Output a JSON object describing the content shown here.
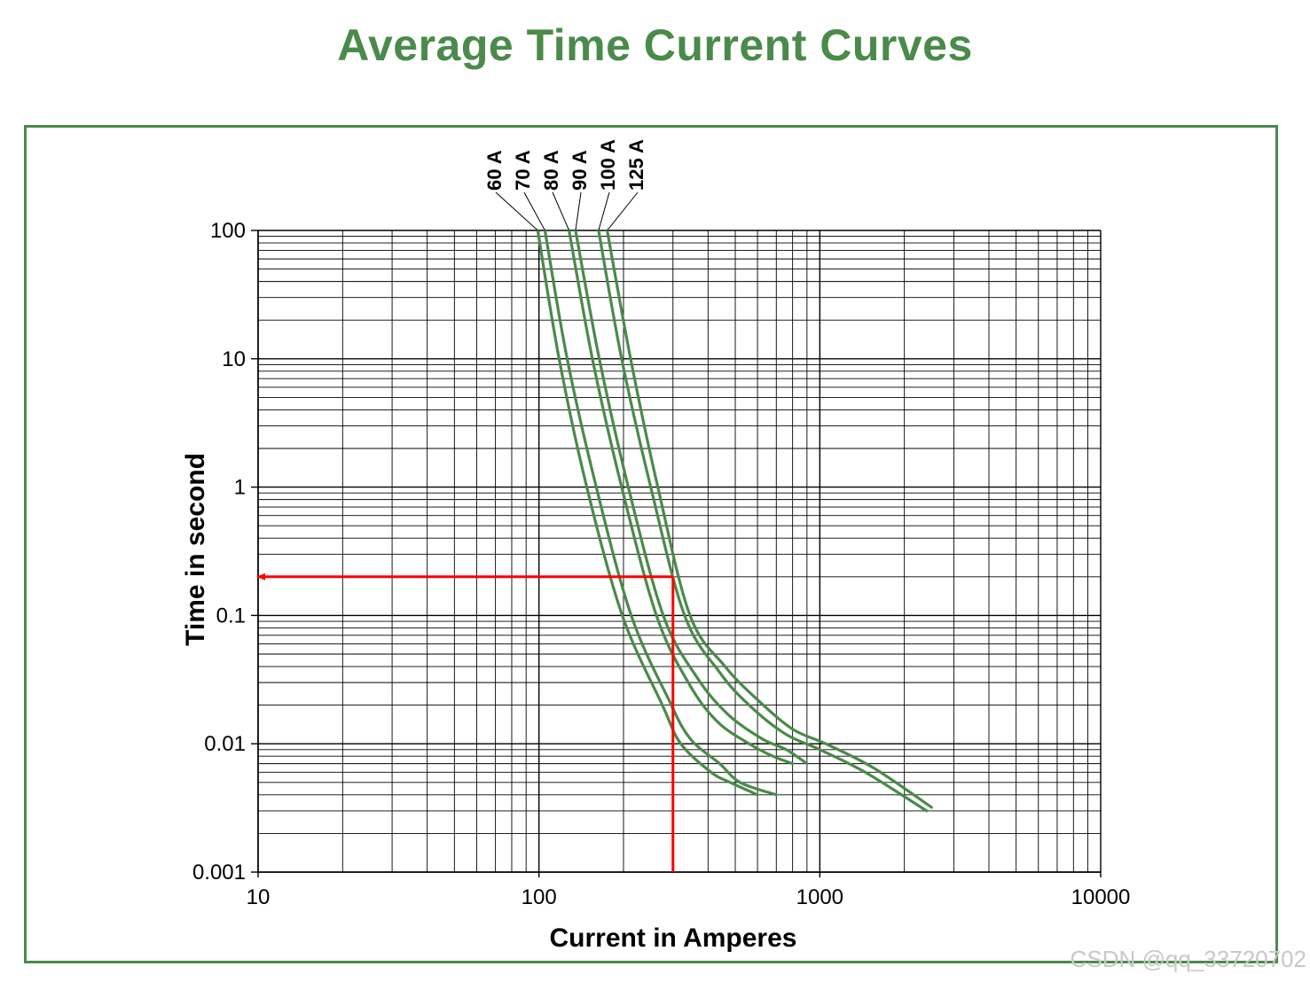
{
  "title": "Average Time Current Curves",
  "watermark": "CSDN @qq_33720702",
  "colors": {
    "title": "#4a8a4a",
    "frame": "#4a8a4a",
    "curve": "#4a8a4a",
    "marker": "#ff0000",
    "grid": "#000000"
  },
  "chart_data": {
    "type": "line",
    "xscale": "log",
    "yscale": "log",
    "xlabel": "Current in Amperes",
    "ylabel": "Time in second",
    "xlim": [
      10,
      10000
    ],
    "ylim": [
      0.001,
      100
    ],
    "grid": true,
    "xticks": [
      {
        "value": 10,
        "label": "10"
      },
      {
        "value": 100,
        "label": "100"
      },
      {
        "value": 1000,
        "label": "1000"
      },
      {
        "value": 10000,
        "label": "10000"
      }
    ],
    "yticks": [
      {
        "value": 100,
        "label": "100"
      },
      {
        "value": 10,
        "label": "10"
      },
      {
        "value": 1,
        "label": "1"
      },
      {
        "value": 0.1,
        "label": "0.1"
      },
      {
        "value": 0.01,
        "label": "0.01"
      },
      {
        "value": 0.001,
        "label": "0.001"
      }
    ],
    "series": [
      {
        "name": "60 A",
        "points": [
          [
            99,
            100
          ],
          [
            118,
            10
          ],
          [
            148,
            1
          ],
          [
            198,
            0.1
          ],
          [
            275,
            0.02
          ],
          [
            320,
            0.01
          ],
          [
            410,
            0.006
          ],
          [
            480,
            0.005
          ],
          [
            600,
            0.004
          ]
        ]
      },
      {
        "name": "70 A",
        "points": [
          [
            105,
            100
          ],
          [
            126,
            10
          ],
          [
            160,
            1
          ],
          [
            213,
            0.1
          ],
          [
            290,
            0.022
          ],
          [
            345,
            0.011
          ],
          [
            440,
            0.007
          ],
          [
            520,
            0.005
          ],
          [
            700,
            0.004
          ]
        ]
      },
      {
        "name": "80 A",
        "points": [
          [
            128,
            100
          ],
          [
            155,
            10
          ],
          [
            197,
            1
          ],
          [
            262,
            0.1
          ],
          [
            340,
            0.03
          ],
          [
            430,
            0.015
          ],
          [
            560,
            0.01
          ],
          [
            680,
            0.008
          ],
          [
            800,
            0.007
          ]
        ]
      },
      {
        "name": "90 A",
        "points": [
          [
            135,
            100
          ],
          [
            164,
            10
          ],
          [
            208,
            1
          ],
          [
            277,
            0.1
          ],
          [
            365,
            0.033
          ],
          [
            470,
            0.017
          ],
          [
            620,
            0.011
          ],
          [
            760,
            0.009
          ],
          [
            900,
            0.007
          ]
        ]
      },
      {
        "name": "100 A",
        "points": [
          [
            163,
            100
          ],
          [
            197,
            10
          ],
          [
            250,
            1
          ],
          [
            330,
            0.1
          ],
          [
            440,
            0.036
          ],
          [
            560,
            0.02
          ],
          [
            750,
            0.012
          ],
          [
            1000,
            0.009
          ],
          [
            1450,
            0.006
          ],
          [
            2400,
            0.003
          ]
        ]
      },
      {
        "name": "125 A",
        "points": [
          [
            175,
            100
          ],
          [
            212,
            10
          ],
          [
            265,
            1
          ],
          [
            345,
            0.1
          ],
          [
            460,
            0.04
          ],
          [
            600,
            0.022
          ],
          [
            800,
            0.013
          ],
          [
            1050,
            0.01
          ],
          [
            1550,
            0.0065
          ],
          [
            2500,
            0.0032
          ]
        ]
      }
    ],
    "annotations": [
      {
        "type": "arrow",
        "from": [
          300,
          0.2
        ],
        "to": [
          10,
          0.2
        ]
      },
      {
        "type": "line",
        "from": [
          300,
          0.001
        ],
        "to": [
          300,
          0.2
        ]
      }
    ]
  }
}
